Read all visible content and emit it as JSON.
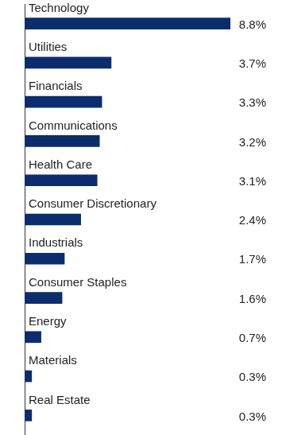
{
  "chart_data": {
    "type": "bar",
    "orientation": "horizontal",
    "categories": [
      "Technology",
      "Utilities",
      "Financials",
      "Communications",
      "Health Care",
      "Consumer Discretionary",
      "Industrials",
      "Consumer Staples",
      "Energy",
      "Materials",
      "Real Estate"
    ],
    "values": [
      8.8,
      3.7,
      3.3,
      3.2,
      3.1,
      2.4,
      1.7,
      1.6,
      0.7,
      0.3,
      0.3
    ],
    "value_labels": [
      "8.8%",
      "3.7%",
      "3.3%",
      "3.2%",
      "3.1%",
      "2.4%",
      "1.7%",
      "1.6%",
      "0.7%",
      "0.3%",
      "0.3%"
    ],
    "color": "#0c2d6b",
    "xlim": [
      0,
      8.8
    ],
    "grid": false,
    "data_labels": true
  }
}
